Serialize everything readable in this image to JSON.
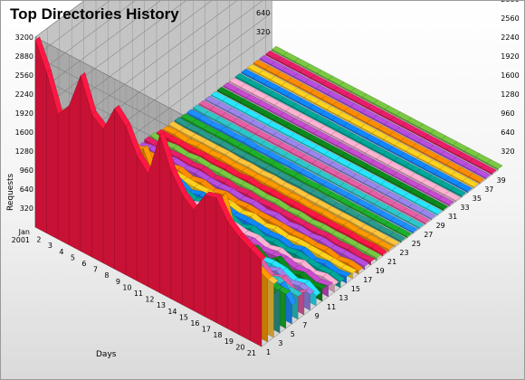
{
  "chart_data": {
    "type": "area",
    "title": "Top Directories History",
    "xlabel": "Days",
    "ylabel": "Requests",
    "zlabel": "",
    "x_categories": [
      "Jan 2001",
      "2",
      "3",
      "4",
      "5",
      "6",
      "7",
      "8",
      "9",
      "10",
      "11",
      "12",
      "13",
      "14",
      "15",
      "16",
      "17",
      "18",
      "19",
      "20",
      "21"
    ],
    "z_tick_labels": [
      "1",
      "3",
      "5",
      "7",
      "9",
      "11",
      "13",
      "15",
      "17",
      "19",
      "21",
      "23",
      "25",
      "27",
      "29",
      "31",
      "33",
      "35",
      "37",
      "39"
    ],
    "y_ticks": [
      320,
      640,
      960,
      1280,
      1600,
      1920,
      2240,
      2560,
      2880,
      3200
    ],
    "y_tick_labels": [
      "320",
      "640",
      "960",
      "1280",
      "1600",
      "1920",
      "2240",
      "2560",
      "2880",
      "3200"
    ],
    "ylim": [
      0,
      3200
    ],
    "num_series": 40,
    "grid": true,
    "rank1_values": [
      3150,
      2700,
      2100,
      2350,
      2950,
      2400,
      2250,
      2700,
      2500,
      2100,
      1900,
      2650,
      2150,
      1850,
      1700,
      2050,
      2100,
      1800,
      1650,
      1550,
      1450
    ],
    "rank2_values": [
      2250,
      2050,
      1950,
      2100,
      2250,
      2050,
      1700,
      1750,
      2000,
      2150,
      1750,
      1650,
      1800,
      1600,
      1450,
      1300,
      2050,
      1350,
      1200,
      1150,
      1050
    ],
    "rank3_values": [
      1850,
      1700,
      1600,
      1650,
      1700,
      1650,
      1500,
      1450,
      1550,
      1450,
      1400,
      1350,
      1300,
      1200,
      1150,
      1100,
      1250,
      1050,
      1000,
      950,
      900
    ],
    "rank_amplitude_decay": 0.84,
    "series_colors": [
      "#ff1744",
      "#ff9a00",
      "#ffc53d",
      "#2a9a8c",
      "#1cb02c",
      "#1e8fff",
      "#2ec7cb",
      "#e75ea8",
      "#9a86ec",
      "#26e7ff",
      "#0c8a1c",
      "#c74ccf",
      "#ffb3d4",
      "#00a89a",
      "#1188ff",
      "#ffd21e",
      "#ff8c00",
      "#b84ee0",
      "#e91e6a",
      "#7ac943"
    ]
  }
}
